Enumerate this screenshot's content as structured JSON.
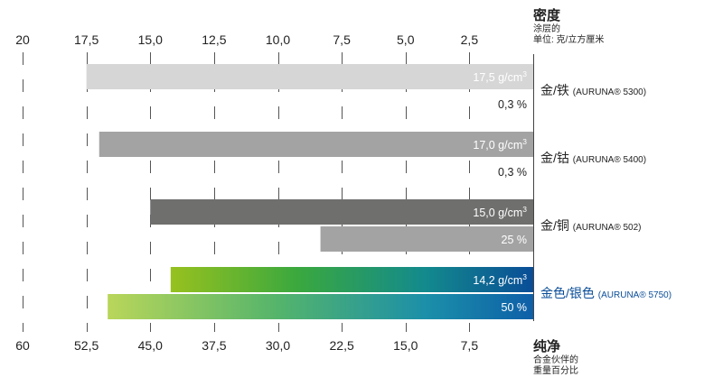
{
  "chart_data": {
    "type": "bar",
    "orientation": "horizontal-reversed",
    "categories": [
      {
        "name": "金/铁",
        "product": "(AURUNA® 5300)",
        "highlight": false
      },
      {
        "name": "金/钴",
        "product": "(AURUNA® 5400)",
        "highlight": false
      },
      {
        "name": "金/铜",
        "product": "(AURUNA® 502)",
        "highlight": false
      },
      {
        "name": "金色/银色",
        "product": "(AURUNA® 5750)",
        "highlight": true
      }
    ],
    "series": [
      {
        "key": "density",
        "values": [
          17.5,
          17.0,
          15.0,
          14.2
        ],
        "labels": [
          "17,5 g/cm³",
          "17,0 g/cm³",
          "15,0 g/cm³",
          "14,2 g/cm³"
        ],
        "colors": [
          "#d6d6d6",
          "#a3a3a3",
          "#6f6f6e",
          "gradient-green-blue"
        ]
      },
      {
        "key": "purity",
        "values": [
          0.3,
          0.3,
          25,
          50
        ],
        "labels": [
          "0,3 %",
          "0,3 %",
          "25 %",
          "50 %"
        ],
        "colors": [
          "#ffffff",
          "#ffffff",
          "#a3a3a3",
          "gradient-lightgreen-blue"
        ]
      }
    ],
    "top_axis": {
      "title": "密度",
      "subtitle_lines": [
        "涂层的",
        "单位: 克/立方厘米"
      ],
      "range": [
        0,
        20
      ],
      "ticks": [
        20,
        17.5,
        15,
        12.5,
        10,
        7.5,
        5,
        2.5
      ],
      "tick_labels": [
        "20",
        "17,5",
        "15,0",
        "12,5",
        "10,0",
        "7,5",
        "5,0",
        "2,5"
      ]
    },
    "bottom_axis": {
      "title": "纯净",
      "subtitle_lines": [
        "合金伙伴的",
        "重量百分比"
      ],
      "range": [
        0,
        60
      ],
      "ticks": [
        60,
        52.5,
        45,
        37.5,
        30,
        22.5,
        15,
        7.5
      ],
      "tick_labels": [
        "60",
        "52,5",
        "45,0",
        "37,5",
        "30,0",
        "22,5",
        "15,0",
        "7,5"
      ]
    },
    "grid": "dashed-vertical"
  },
  "colors": {
    "text": "#222222",
    "highlight_text": "#0a4d97",
    "gray_light": "#d6d6d6",
    "gray_mid": "#a3a3a3",
    "gray_dark": "#6f6f6e"
  }
}
